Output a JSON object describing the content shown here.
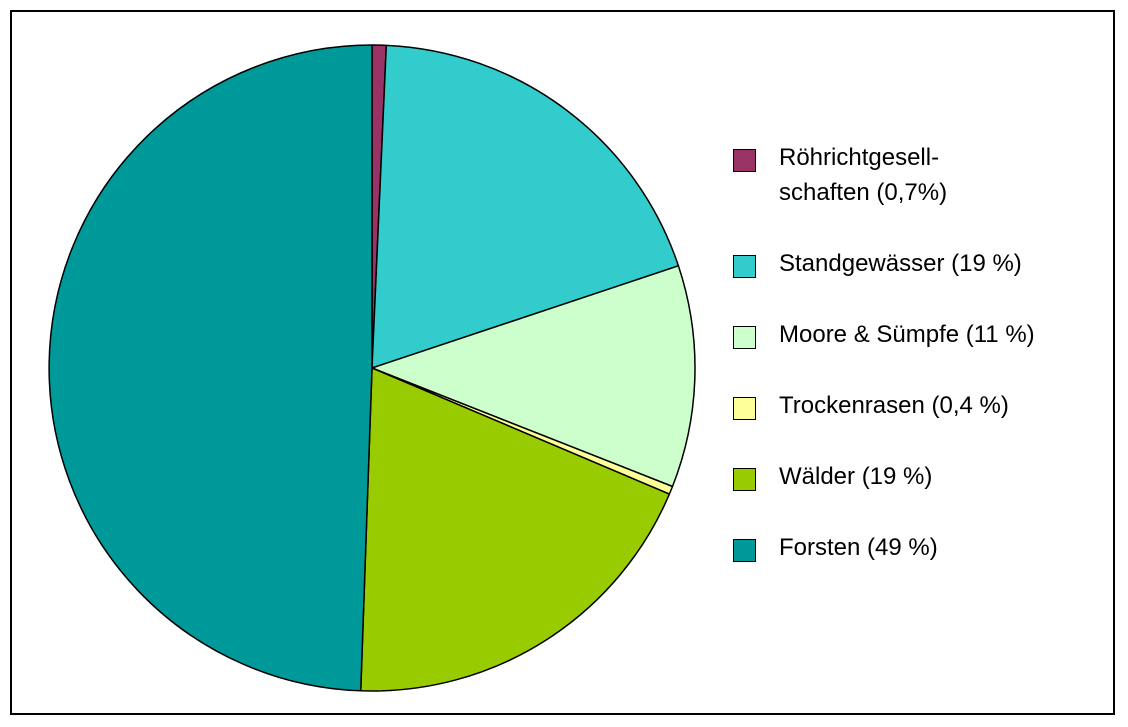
{
  "chart_data": {
    "type": "pie",
    "title": "",
    "slices": [
      {
        "label": "Röhrichtgesell-\nschaften (0,7%)",
        "value": 0.7,
        "color": "#993366"
      },
      {
        "label": "Standgewässer (19 %)",
        "value": 19,
        "color": "#33CCCC"
      },
      {
        "label": "Moore & Sümpfe (11 %)",
        "value": 11,
        "color": "#CCFFCC"
      },
      {
        "label": "Trockenrasen (0,4 %)",
        "value": 0.4,
        "color": "#FFFF99"
      },
      {
        "label": "Wälder (19 %)",
        "value": 19,
        "color": "#99CC00"
      },
      {
        "label": "Forsten (49 %)",
        "value": 49,
        "color": "#009999"
      }
    ],
    "start_angle": "12 o'clock",
    "direction": "clockwise",
    "legend_position": "right"
  }
}
